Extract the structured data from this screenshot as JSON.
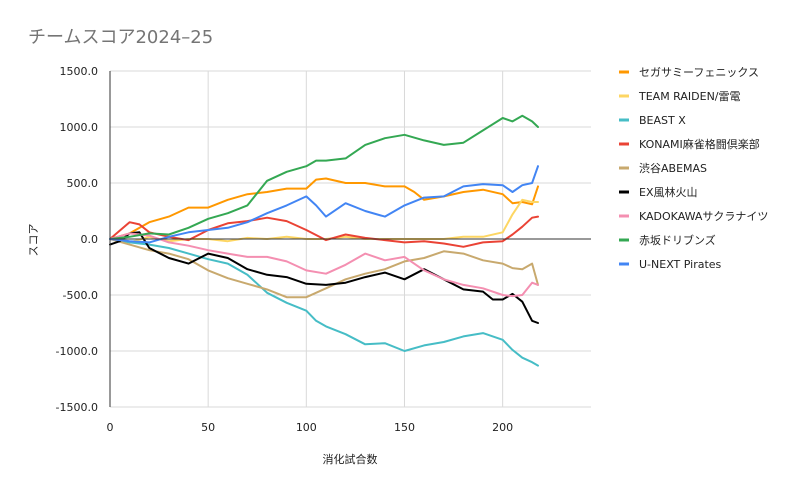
{
  "chart_data": {
    "type": "line",
    "title": "チームスコア2024–25",
    "xlabel": "消化試合数",
    "ylabel": "スコア",
    "xlim": [
      0,
      245
    ],
    "ylim": [
      -1500,
      1500
    ],
    "x_ticks": [
      0,
      50,
      100,
      150,
      200
    ],
    "y_ticks": [
      1500,
      1000,
      500,
      0,
      -500,
      -1000,
      -1500
    ],
    "x_tick_labels": [
      "0",
      "50",
      "100",
      "150",
      "200"
    ],
    "y_tick_labels": [
      "1500.0",
      "1000.0",
      "500.0",
      "0.0",
      "-500.0",
      "-1000.0",
      "-1500.0"
    ],
    "grid": true,
    "legend_position": "right",
    "series": [
      {
        "name": "セガサミーフェニックス",
        "color": "#ff9800",
        "points": [
          [
            0,
            0
          ],
          [
            10,
            50
          ],
          [
            20,
            150
          ],
          [
            30,
            200
          ],
          [
            40,
            280
          ],
          [
            50,
            280
          ],
          [
            60,
            350
          ],
          [
            70,
            400
          ],
          [
            80,
            420
          ],
          [
            90,
            450
          ],
          [
            100,
            450
          ],
          [
            105,
            530
          ],
          [
            110,
            540
          ],
          [
            120,
            500
          ],
          [
            130,
            500
          ],
          [
            140,
            470
          ],
          [
            150,
            470
          ],
          [
            155,
            420
          ],
          [
            160,
            350
          ],
          [
            170,
            380
          ],
          [
            180,
            420
          ],
          [
            190,
            440
          ],
          [
            200,
            400
          ],
          [
            205,
            320
          ],
          [
            210,
            330
          ],
          [
            215,
            310
          ],
          [
            218,
            470
          ]
        ]
      },
      {
        "name": "TEAM RAIDEN/雷電",
        "color": "#fdd663",
        "points": [
          [
            0,
            0
          ],
          [
            10,
            -30
          ],
          [
            20,
            20
          ],
          [
            30,
            -20
          ],
          [
            40,
            0
          ],
          [
            50,
            0
          ],
          [
            60,
            -20
          ],
          [
            70,
            10
          ],
          [
            80,
            0
          ],
          [
            90,
            20
          ],
          [
            100,
            0
          ],
          [
            110,
            0
          ],
          [
            120,
            20
          ],
          [
            130,
            0
          ],
          [
            140,
            0
          ],
          [
            150,
            0
          ],
          [
            160,
            0
          ],
          [
            170,
            0
          ],
          [
            180,
            20
          ],
          [
            190,
            20
          ],
          [
            200,
            60
          ],
          [
            205,
            220
          ],
          [
            210,
            350
          ],
          [
            215,
            330
          ],
          [
            218,
            330
          ]
        ]
      },
      {
        "name": "BEAST X",
        "color": "#46bdc6",
        "points": [
          [
            0,
            0
          ],
          [
            10,
            -30
          ],
          [
            20,
            -50
          ],
          [
            30,
            -80
          ],
          [
            40,
            -130
          ],
          [
            50,
            -180
          ],
          [
            60,
            -220
          ],
          [
            70,
            -320
          ],
          [
            80,
            -480
          ],
          [
            90,
            -570
          ],
          [
            100,
            -640
          ],
          [
            105,
            -730
          ],
          [
            110,
            -780
          ],
          [
            120,
            -850
          ],
          [
            130,
            -940
          ],
          [
            140,
            -930
          ],
          [
            150,
            -1000
          ],
          [
            160,
            -950
          ],
          [
            170,
            -920
          ],
          [
            180,
            -870
          ],
          [
            190,
            -840
          ],
          [
            200,
            -900
          ],
          [
            205,
            -990
          ],
          [
            210,
            -1060
          ],
          [
            215,
            -1100
          ],
          [
            218,
            -1130
          ]
        ]
      },
      {
        "name": "KONAMI麻雀格闘倶楽部",
        "color": "#ea4335",
        "points": [
          [
            0,
            0
          ],
          [
            10,
            150
          ],
          [
            15,
            130
          ],
          [
            20,
            60
          ],
          [
            30,
            20
          ],
          [
            40,
            -10
          ],
          [
            50,
            80
          ],
          [
            60,
            140
          ],
          [
            70,
            160
          ],
          [
            80,
            190
          ],
          [
            90,
            160
          ],
          [
            100,
            80
          ],
          [
            110,
            -10
          ],
          [
            120,
            40
          ],
          [
            130,
            10
          ],
          [
            140,
            -10
          ],
          [
            150,
            -30
          ],
          [
            160,
            -20
          ],
          [
            170,
            -40
          ],
          [
            180,
            -70
          ],
          [
            190,
            -30
          ],
          [
            200,
            -20
          ],
          [
            205,
            40
          ],
          [
            210,
            110
          ],
          [
            215,
            190
          ],
          [
            218,
            200
          ]
        ]
      },
      {
        "name": "渋谷ABEMAS",
        "color": "#c8a96e",
        "points": [
          [
            0,
            0
          ],
          [
            10,
            -50
          ],
          [
            20,
            -100
          ],
          [
            30,
            -130
          ],
          [
            40,
            -180
          ],
          [
            50,
            -280
          ],
          [
            60,
            -350
          ],
          [
            70,
            -400
          ],
          [
            80,
            -450
          ],
          [
            90,
            -520
          ],
          [
            100,
            -520
          ],
          [
            110,
            -440
          ],
          [
            120,
            -360
          ],
          [
            130,
            -310
          ],
          [
            140,
            -270
          ],
          [
            150,
            -200
          ],
          [
            160,
            -170
          ],
          [
            170,
            -110
          ],
          [
            180,
            -130
          ],
          [
            190,
            -190
          ],
          [
            200,
            -220
          ],
          [
            205,
            -260
          ],
          [
            210,
            -270
          ],
          [
            215,
            -220
          ],
          [
            218,
            -410
          ]
        ]
      },
      {
        "name": "EX風林火山",
        "color": "#000000",
        "points": [
          [
            0,
            -50
          ],
          [
            5,
            -20
          ],
          [
            10,
            50
          ],
          [
            15,
            60
          ],
          [
            20,
            -80
          ],
          [
            30,
            -170
          ],
          [
            40,
            -220
          ],
          [
            50,
            -130
          ],
          [
            60,
            -170
          ],
          [
            70,
            -270
          ],
          [
            80,
            -320
          ],
          [
            90,
            -340
          ],
          [
            100,
            -400
          ],
          [
            110,
            -410
          ],
          [
            120,
            -390
          ],
          [
            130,
            -340
          ],
          [
            140,
            -300
          ],
          [
            150,
            -360
          ],
          [
            160,
            -270
          ],
          [
            170,
            -360
          ],
          [
            180,
            -450
          ],
          [
            190,
            -470
          ],
          [
            195,
            -540
          ],
          [
            200,
            -540
          ],
          [
            205,
            -490
          ],
          [
            210,
            -560
          ],
          [
            215,
            -730
          ],
          [
            218,
            -750
          ]
        ]
      },
      {
        "name": "KADOKAWAサクラナイツ",
        "color": "#f48fb1",
        "points": [
          [
            0,
            0
          ],
          [
            10,
            50
          ],
          [
            20,
            30
          ],
          [
            30,
            -30
          ],
          [
            40,
            -60
          ],
          [
            50,
            -100
          ],
          [
            60,
            -130
          ],
          [
            70,
            -160
          ],
          [
            80,
            -160
          ],
          [
            90,
            -200
          ],
          [
            100,
            -280
          ],
          [
            110,
            -310
          ],
          [
            120,
            -230
          ],
          [
            130,
            -130
          ],
          [
            140,
            -190
          ],
          [
            150,
            -160
          ],
          [
            160,
            -280
          ],
          [
            170,
            -360
          ],
          [
            180,
            -410
          ],
          [
            190,
            -440
          ],
          [
            200,
            -500
          ],
          [
            205,
            -510
          ],
          [
            210,
            -500
          ],
          [
            215,
            -390
          ],
          [
            218,
            -410
          ]
        ]
      },
      {
        "name": "赤坂ドリブンズ",
        "color": "#34a853",
        "points": [
          [
            0,
            0
          ],
          [
            10,
            20
          ],
          [
            20,
            50
          ],
          [
            30,
            40
          ],
          [
            40,
            100
          ],
          [
            50,
            180
          ],
          [
            60,
            230
          ],
          [
            70,
            300
          ],
          [
            80,
            520
          ],
          [
            90,
            600
          ],
          [
            100,
            650
          ],
          [
            105,
            700
          ],
          [
            110,
            700
          ],
          [
            120,
            720
          ],
          [
            130,
            840
          ],
          [
            140,
            900
          ],
          [
            150,
            930
          ],
          [
            160,
            880
          ],
          [
            170,
            840
          ],
          [
            180,
            860
          ],
          [
            190,
            970
          ],
          [
            200,
            1080
          ],
          [
            205,
            1050
          ],
          [
            210,
            1100
          ],
          [
            215,
            1050
          ],
          [
            218,
            1000
          ]
        ]
      },
      {
        "name": "U-NEXT Pirates",
        "color": "#4285f4",
        "points": [
          [
            0,
            0
          ],
          [
            10,
            -20
          ],
          [
            20,
            -30
          ],
          [
            30,
            20
          ],
          [
            40,
            60
          ],
          [
            50,
            80
          ],
          [
            60,
            100
          ],
          [
            70,
            150
          ],
          [
            80,
            230
          ],
          [
            90,
            300
          ],
          [
            100,
            380
          ],
          [
            105,
            300
          ],
          [
            110,
            200
          ],
          [
            120,
            320
          ],
          [
            130,
            250
          ],
          [
            140,
            200
          ],
          [
            150,
            300
          ],
          [
            160,
            370
          ],
          [
            170,
            380
          ],
          [
            180,
            470
          ],
          [
            190,
            490
          ],
          [
            200,
            480
          ],
          [
            205,
            420
          ],
          [
            210,
            480
          ],
          [
            215,
            500
          ],
          [
            218,
            650
          ]
        ]
      }
    ]
  }
}
